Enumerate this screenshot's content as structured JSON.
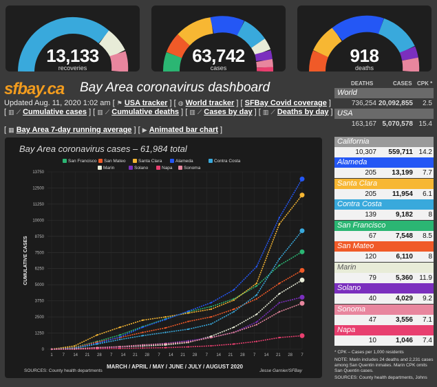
{
  "gauges": [
    {
      "value": "13,133",
      "label": "recoveries"
    },
    {
      "value": "63,742",
      "label": "cases"
    },
    {
      "value": "918",
      "label": "deaths"
    }
  ],
  "header": {
    "logo": "sfbay.ca",
    "title": "Bay Area coronavirus dashboard"
  },
  "nav": {
    "updated": "Updated Aug. 11, 2020 1:02 am",
    "usa_tracker": "USA tracker",
    "world_tracker": "World tracker",
    "sfbay_coverage": "SFBay Covid coverage",
    "cumulative_cases": "Cumulative cases",
    "cumulative_deaths": "Cumulative deaths",
    "cases_by_day": "Cases by day",
    "deaths_by_day": "Deaths by day",
    "running_avg": "Bay Area 7-day running average",
    "animated_bar": "Animated bar chart"
  },
  "chart_data": {
    "type": "line",
    "title": "Bay Area coronavirus cases – 61,984 total",
    "xlabel": "MARCH / APRIL / MAY / JUNE / JULY / AUGUST 2020",
    "ylabel": "CUMULATIVE CASES",
    "ylim": [
      0,
      13750
    ],
    "yticks": [
      "0",
      "1250",
      "2500",
      "3750",
      "5000",
      "6250",
      "7500",
      "8750",
      "10000",
      "11250",
      "12500",
      "13750"
    ],
    "xticks": [
      "1",
      "7",
      "14",
      "21",
      "28",
      "7",
      "14",
      "21",
      "28",
      "7",
      "14",
      "21",
      "28",
      "7",
      "14",
      "21",
      "28",
      "7",
      "14",
      "21",
      "28",
      "7"
    ],
    "source": "SOURCES: County health departments",
    "credit": "Jesse Garnier/SFBay",
    "x": [
      "Mar 1",
      "Mar 15",
      "Apr 1",
      "Apr 15",
      "May 1",
      "May 15",
      "Jun 1",
      "Jun 15",
      "Jul 1",
      "Jul 15",
      "Aug 1",
      "Aug 10"
    ],
    "series": [
      {
        "name": "San Francisco",
        "color": "#2bb673",
        "values": [
          0,
          150,
          600,
          1100,
          1750,
          2350,
          2900,
          3300,
          3900,
          4900,
          6500,
          7548
        ]
      },
      {
        "name": "San Mateo",
        "color": "#f05a28",
        "values": [
          0,
          120,
          550,
          900,
          1300,
          1650,
          2150,
          2500,
          3100,
          3900,
          5100,
          6110
        ]
      },
      {
        "name": "Santa Clara",
        "color": "#f7b733",
        "values": [
          0,
          250,
          1100,
          1700,
          2250,
          2500,
          2800,
          3100,
          3800,
          5100,
          9700,
          11954
        ]
      },
      {
        "name": "Alameda",
        "color": "#2457f5",
        "values": [
          0,
          80,
          450,
          950,
          1700,
          2300,
          2950,
          3600,
          4600,
          6400,
          10200,
          13199
        ]
      },
      {
        "name": "Contra Costa",
        "color": "#39a9dc",
        "values": [
          0,
          70,
          400,
          750,
          1050,
          1300,
          1550,
          1950,
          2900,
          4200,
          7000,
          9182
        ]
      },
      {
        "name": "Marin",
        "color": "#e8ecd8",
        "values": [
          0,
          30,
          120,
          180,
          250,
          330,
          520,
          1000,
          1700,
          2700,
          4300,
          5360
        ]
      },
      {
        "name": "Solano",
        "color": "#7b2fbe",
        "values": [
          0,
          20,
          80,
          180,
          320,
          450,
          650,
          900,
          1300,
          2100,
          3600,
          4029
        ]
      },
      {
        "name": "Napa",
        "color": "#e83f6f",
        "values": [
          0,
          5,
          30,
          60,
          90,
          120,
          180,
          260,
          400,
          600,
          900,
          1046
        ]
      },
      {
        "name": "Sonoma",
        "color": "#e8869e",
        "values": [
          0,
          20,
          120,
          200,
          330,
          420,
          560,
          900,
          1300,
          1900,
          2900,
          3556
        ]
      }
    ]
  },
  "table": {
    "headers": [
      "DEATHS",
      "CASES",
      "CPK *"
    ],
    "rows": [
      {
        "name": "World",
        "deaths": "736,254",
        "cases": "20,092,855",
        "cpk": "2.5",
        "bg": "#6a6a6a",
        "name_color": "#fff"
      },
      {
        "name": "USA",
        "deaths": "163,167",
        "cases": "5,070,578",
        "cpk": "15.4",
        "bg": "#6a6a6a",
        "name_color": "#fff"
      },
      {
        "name": "California",
        "deaths": "10,307",
        "cases": "559,711",
        "cpk": "14.2",
        "bg": "#9a9a9a",
        "name_color": "#fff"
      },
      {
        "name": "Alameda",
        "deaths": "205",
        "cases": "13,199",
        "cpk": "7.7",
        "bg": "#2457f5",
        "name_color": "#fff"
      },
      {
        "name": "Santa Clara",
        "deaths": "205",
        "cases": "11,954",
        "cpk": "6.1",
        "bg": "#f7b733",
        "name_color": "#fff"
      },
      {
        "name": "Contra Costa",
        "deaths": "139",
        "cases": "9,182",
        "cpk": "8",
        "bg": "#39a9dc",
        "name_color": "#fff"
      },
      {
        "name": "San Francisco",
        "deaths": "67",
        "cases": "7,548",
        "cpk": "8.5",
        "bg": "#2bb673",
        "name_color": "#fff"
      },
      {
        "name": "San Mateo",
        "deaths": "120",
        "cases": "6,110",
        "cpk": "8",
        "bg": "#f05a28",
        "name_color": "#fff"
      },
      {
        "name": "Marin",
        "deaths": "79",
        "cases": "5,360",
        "cpk": "11.9",
        "bg": "#e8ecd8",
        "name_color": "#555"
      },
      {
        "name": "Solano",
        "deaths": "40",
        "cases": "4,029",
        "cpk": "9.2",
        "bg": "#7b2fbe",
        "name_color": "#fff"
      },
      {
        "name": "Sonoma",
        "deaths": "47",
        "cases": "3,556",
        "cpk": "7.1",
        "bg": "#e8869e",
        "name_color": "#fff"
      },
      {
        "name": "Napa",
        "deaths": "10",
        "cases": "1,046",
        "cpk": "7.4",
        "bg": "#e83f6f",
        "name_color": "#fff"
      }
    ],
    "footnote1": "* CPK – Cases per 1,000 residents",
    "footnote2": "NOTE: Marin includes 24 deaths and 2,231 cases among San Quentin inmates. Marin CPK omits San Quentin cases.",
    "footnote3": "SOURCES: County health departments, Johns"
  }
}
